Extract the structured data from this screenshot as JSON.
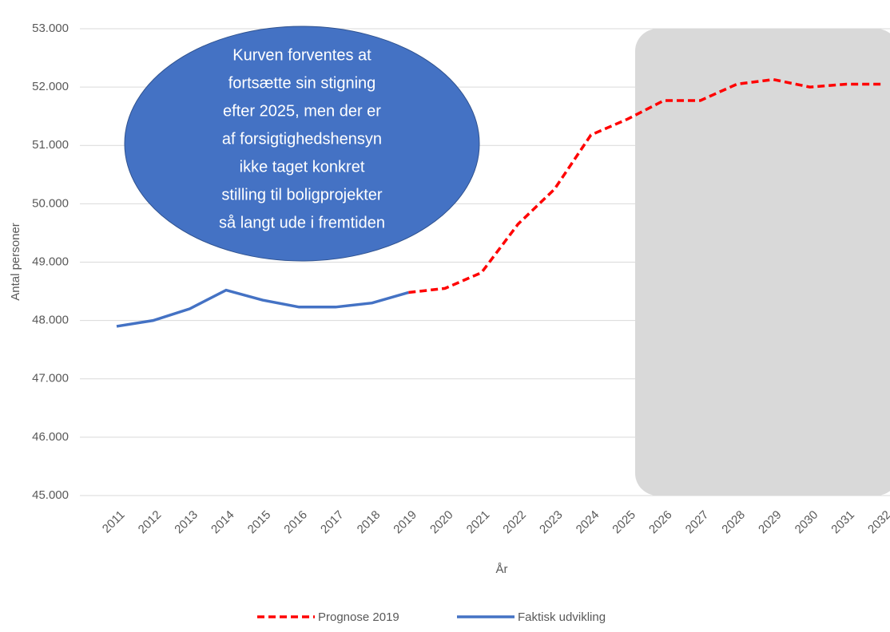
{
  "chart_data": {
    "type": "line",
    "xlabel": "År",
    "ylabel": "Antal personer",
    "annotation": [
      "Kurven forventes at",
      "fortsætte sin stigning",
      "efter 2025, men der er",
      "af forsigtighedshensyn",
      "ikke taget konkret",
      "stilling til boligprojekter",
      "så langt ude i fremtiden"
    ],
    "categories": [
      "2011",
      "2012",
      "2013",
      "2014",
      "2015",
      "2016",
      "2017",
      "2018",
      "2019",
      "2020",
      "2021",
      "2022",
      "2023",
      "2024",
      "2025",
      "2026",
      "2027",
      "2028",
      "2029",
      "2030",
      "2031",
      "2032"
    ],
    "series": [
      {
        "name": "Prognose 2019",
        "color": "#ff0000",
        "dash": true,
        "values": [
          null,
          null,
          null,
          null,
          null,
          null,
          null,
          null,
          48480,
          48550,
          48820,
          49650,
          50250,
          51180,
          51450,
          51770,
          51770,
          52050,
          52130,
          52000,
          52050,
          52050
        ]
      },
      {
        "name": "Faktisk udvikling",
        "color": "#4472c4",
        "dash": false,
        "values": [
          47900,
          48000,
          48200,
          48520,
          48350,
          48230,
          48230,
          48300,
          48480,
          null,
          null,
          null,
          null,
          null,
          null,
          null,
          null,
          null,
          null,
          null,
          null,
          null
        ]
      }
    ],
    "ylim": [
      45000,
      53000
    ],
    "yticks": [
      {
        "value": 45000,
        "label": "45.000"
      },
      {
        "value": 46000,
        "label": "46.000"
      },
      {
        "value": 47000,
        "label": "47.000"
      },
      {
        "value": 48000,
        "label": "48.000"
      },
      {
        "value": 49000,
        "label": "49.000"
      },
      {
        "value": 50000,
        "label": "50.000"
      },
      {
        "value": 51000,
        "label": "51.000"
      },
      {
        "value": 52000,
        "label": "52.000"
      },
      {
        "value": 53000,
        "label": "53.000"
      }
    ],
    "grid": true,
    "legend": "bottom"
  }
}
